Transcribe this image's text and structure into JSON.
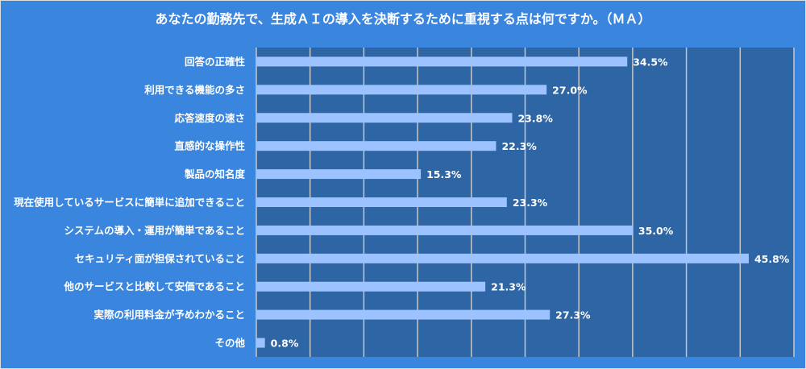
{
  "chart_data": {
    "type": "bar",
    "orientation": "horizontal",
    "title": "あなたの勤務先で、生成ＡＩの導入を決断するために重視する点は何ですか。（ＭＡ）",
    "categories": [
      "回答の正確性",
      "利用できる機能の多さ",
      "応答速度の速さ",
      "直感的な操作性",
      "製品の知名度",
      "現在使用しているサービスに簡単に追加できること",
      "システムの導入・運用が簡単であること",
      "セキュリティ面が担保されていること",
      "他のサービスと比較して安価であること",
      "実際の利用料金が予めわかること",
      "その他"
    ],
    "values": [
      34.5,
      27.0,
      23.8,
      22.3,
      15.3,
      23.3,
      35.0,
      45.8,
      21.3,
      27.3,
      0.8
    ],
    "labels": [
      "34.5%",
      "27.0%",
      "23.8%",
      "22.3%",
      "15.3%",
      "23.3%",
      "35.0%",
      "45.8%",
      "21.3%",
      "27.3%",
      "0.8%"
    ],
    "xlim": [
      0,
      50
    ],
    "grid_step": 5,
    "grid": true,
    "xlabel": "",
    "ylabel": "",
    "colors": {
      "background": "#3a85de",
      "plot": "#2e65a5",
      "bar": "#9cc3ff",
      "grid": "#c8c8c8",
      "text": "#ffffff"
    }
  }
}
